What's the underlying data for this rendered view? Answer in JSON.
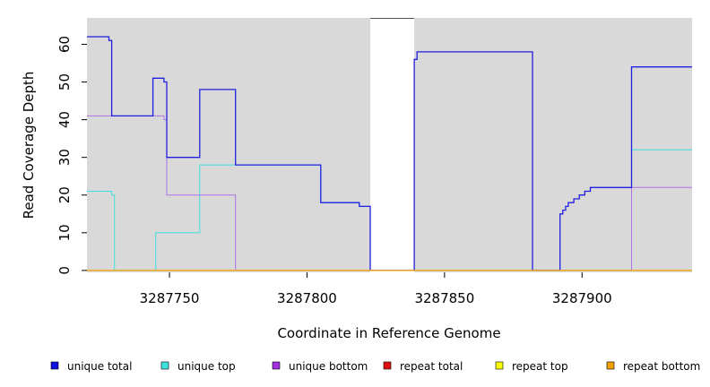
{
  "chart_data": {
    "type": "line",
    "title": "",
    "xlabel": "Coordinate in Reference Genome",
    "ylabel": "Read Coverage Depth",
    "xlim": [
      3287720,
      3287940
    ],
    "ylim": [
      -0.5,
      67
    ],
    "x_ticks": [
      3287750,
      3287800,
      3287850,
      3287900
    ],
    "x_tick_labels": [
      "3287750",
      "3287800",
      "3287850",
      "3287900"
    ],
    "y_ticks": [
      0,
      10,
      20,
      30,
      40,
      50,
      60
    ],
    "y_tick_labels": [
      "0",
      "10",
      "20",
      "30",
      "40",
      "50",
      "60"
    ],
    "background_color": "#d9d9d9",
    "uncovered_region": [
      3287823,
      3287839
    ],
    "legend_position": "bottom",
    "series": [
      {
        "name": "unique top",
        "color": "#40e0e0",
        "points": [
          [
            3287720,
            21
          ],
          [
            3287729,
            21
          ],
          [
            3287729,
            20
          ],
          [
            3287730,
            20
          ],
          [
            3287730,
            0
          ],
          [
            3287745,
            0
          ],
          [
            3287745,
            10
          ],
          [
            3287761,
            10
          ],
          [
            3287761,
            28
          ],
          [
            3287805,
            28
          ],
          [
            3287805,
            18
          ],
          [
            3287819,
            18
          ],
          [
            3287819,
            17
          ],
          [
            3287823,
            17
          ],
          [
            3287823,
            0
          ],
          [
            3287918,
            0
          ],
          [
            3287918,
            32
          ],
          [
            3287940,
            32
          ]
        ]
      },
      {
        "name": "unique bottom",
        "color": "#b070e8",
        "points": [
          [
            3287720,
            41
          ],
          [
            3287748,
            41
          ],
          [
            3287748,
            40
          ],
          [
            3287749,
            40
          ],
          [
            3287749,
            20
          ],
          [
            3287774,
            20
          ],
          [
            3287774,
            0
          ],
          [
            3287918,
            0
          ],
          [
            3287918,
            22
          ],
          [
            3287940,
            22
          ]
        ]
      },
      {
        "name": "unique total",
        "color": "#2020e0",
        "points": [
          [
            3287720,
            62
          ],
          [
            3287728,
            62
          ],
          [
            3287728,
            61
          ],
          [
            3287729,
            61
          ],
          [
            3287729,
            41
          ],
          [
            3287744,
            41
          ],
          [
            3287744,
            51
          ],
          [
            3287748,
            51
          ],
          [
            3287748,
            50
          ],
          [
            3287749,
            50
          ],
          [
            3287749,
            30
          ],
          [
            3287761,
            30
          ],
          [
            3287761,
            48
          ],
          [
            3287774,
            48
          ],
          [
            3287774,
            28
          ],
          [
            3287805,
            28
          ],
          [
            3287805,
            18
          ],
          [
            3287819,
            18
          ],
          [
            3287819,
            17
          ],
          [
            3287823,
            17
          ],
          [
            3287823,
            0
          ],
          [
            3287839,
            0
          ],
          [
            3287839,
            56
          ],
          [
            3287840,
            56
          ],
          [
            3287840,
            58
          ],
          [
            3287882,
            58
          ],
          [
            3287882,
            0
          ],
          [
            3287892,
            0
          ],
          [
            3287892,
            15
          ],
          [
            3287893,
            15
          ],
          [
            3287893,
            16
          ],
          [
            3287894,
            16
          ],
          [
            3287894,
            17
          ],
          [
            3287895,
            17
          ],
          [
            3287895,
            18
          ],
          [
            3287897,
            18
          ],
          [
            3287897,
            19
          ],
          [
            3287899,
            19
          ],
          [
            3287899,
            20
          ],
          [
            3287901,
            20
          ],
          [
            3287901,
            21
          ],
          [
            3287903,
            21
          ],
          [
            3287903,
            22
          ],
          [
            3287918,
            22
          ],
          [
            3287918,
            54
          ],
          [
            3287940,
            54
          ]
        ]
      },
      {
        "name": "repeat total",
        "color": "#e01010",
        "points": [
          [
            3287720,
            0
          ],
          [
            3287940,
            0
          ]
        ]
      },
      {
        "name": "repeat top",
        "color": "#ffff00",
        "points": [
          [
            3287720,
            0
          ],
          [
            3287940,
            0
          ]
        ]
      },
      {
        "name": "repeat bottom",
        "color": "#f0a000",
        "points": [
          [
            3287720,
            0
          ],
          [
            3287940,
            0
          ]
        ]
      }
    ],
    "legend": [
      {
        "label": "unique total",
        "color": "#1010e0"
      },
      {
        "label": "unique top",
        "color": "#40e0e0"
      },
      {
        "label": "unique bottom",
        "color": "#a030e0"
      },
      {
        "label": "repeat total",
        "color": "#e01010"
      },
      {
        "label": "repeat top",
        "color": "#ffff00"
      },
      {
        "label": "repeat bottom",
        "color": "#f0a000"
      }
    ]
  }
}
